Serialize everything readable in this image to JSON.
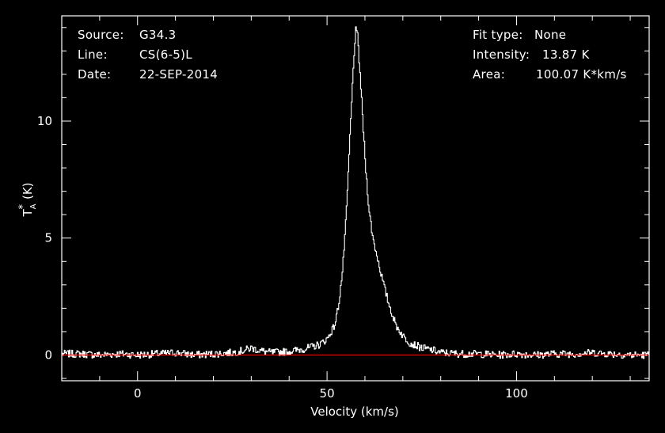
{
  "info_left": {
    "source_label": "Source:",
    "source_value": "G34.3",
    "line_label": "Line:",
    "line_value": "CS(6-5)L",
    "date_label": "Date:",
    "date_value": "22-SEP-2014"
  },
  "info_right": {
    "fit_label": "Fit type:",
    "fit_value": "None",
    "intensity_label": "Intensity:",
    "intensity_value": "13.87 K",
    "area_label": "Area:",
    "area_value": "100.07 K*km/s"
  },
  "colors": {
    "background": "#000000",
    "spectrum": "#ffffff",
    "baseline": "#ff0000",
    "axes": "#ffffff"
  },
  "chart_data": {
    "type": "line",
    "title": "",
    "xlabel": "Velocity (km/s)",
    "ylabel_main": "T",
    "ylabel_sup": "*",
    "ylabel_sub": "A",
    "ylabel_unit": "(K)",
    "xlim": [
      -20,
      135
    ],
    "ylim": [
      -1.1,
      14.5
    ],
    "xticks": [
      0,
      50,
      100
    ],
    "yticks": [
      0,
      5,
      10
    ],
    "grid": false,
    "baseline": 0,
    "series": [
      {
        "x": [
          -20,
          -15,
          -10,
          -5,
          0,
          5,
          10,
          15,
          20,
          25,
          28,
          30,
          32,
          35,
          40,
          45,
          48,
          50,
          52,
          53,
          54,
          55,
          56,
          57,
          57.5,
          58,
          59,
          60,
          61,
          62,
          63,
          64,
          65,
          66,
          67,
          68,
          70,
          72,
          75,
          78,
          80,
          85,
          90,
          95,
          100,
          105,
          110,
          115,
          120,
          125,
          130,
          135
        ],
        "y": [
          0.05,
          0.05,
          0.0,
          0.05,
          0.0,
          0.05,
          0.1,
          0.0,
          0.05,
          0.1,
          0.2,
          0.3,
          0.2,
          0.1,
          0.15,
          0.3,
          0.45,
          0.7,
          1.3,
          2.2,
          3.6,
          6.0,
          9.5,
          12.8,
          13.87,
          13.6,
          11.0,
          8.2,
          6.2,
          5.0,
          4.3,
          3.6,
          2.9,
          2.3,
          1.8,
          1.3,
          0.8,
          0.5,
          0.3,
          0.2,
          0.1,
          0.05,
          0.05,
          0.0,
          0.05,
          0.0,
          0.05,
          0.05,
          0.1,
          0.05,
          0.0,
          0.0
        ]
      }
    ]
  }
}
